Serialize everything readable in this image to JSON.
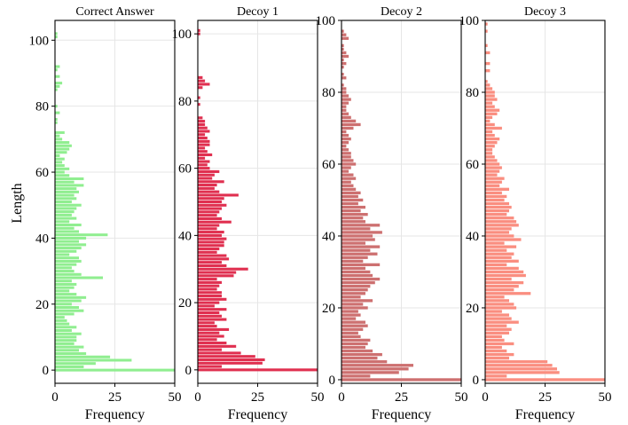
{
  "chart_data": [
    {
      "type": "bar",
      "orientation": "horizontal",
      "title": "Correct Answer",
      "xlabel": "Frequency",
      "ylabel": "Length",
      "xlim": [
        0,
        50
      ],
      "ylim": [
        -4,
        106
      ],
      "xticks": [
        "0",
        "25",
        "50"
      ],
      "yticks": [
        "0",
        "20",
        "40",
        "60",
        "80",
        "100"
      ],
      "ytick_values": [
        0,
        20,
        40,
        60,
        80,
        100
      ],
      "grid": true,
      "color": "#90ee90",
      "y": [
        0,
        1,
        2,
        3,
        4,
        5,
        6,
        7,
        8,
        9,
        10,
        11,
        12,
        13,
        14,
        15,
        16,
        17,
        18,
        19,
        20,
        21,
        22,
        23,
        24,
        25,
        26,
        27,
        28,
        29,
        30,
        31,
        32,
        33,
        34,
        35,
        36,
        37,
        38,
        39,
        40,
        41,
        42,
        43,
        44,
        45,
        46,
        47,
        48,
        49,
        50,
        51,
        52,
        53,
        54,
        55,
        56,
        57,
        58,
        59,
        60,
        61,
        62,
        63,
        64,
        65,
        66,
        67,
        68,
        69,
        70,
        71,
        72,
        73,
        74,
        75,
        76,
        77,
        78,
        79,
        80,
        81,
        82,
        83,
        84,
        85,
        86,
        87,
        88,
        89,
        90,
        91,
        92,
        93,
        94,
        95,
        96,
        97,
        98,
        99,
        100,
        101,
        102,
        103,
        104,
        105
      ],
      "values": [
        50,
        12,
        17,
        32,
        23,
        13,
        10,
        12,
        8,
        9,
        9,
        11,
        7,
        9,
        6,
        5,
        4,
        8,
        12,
        10,
        7,
        11,
        13,
        9,
        6,
        8,
        9,
        7,
        20,
        11,
        8,
        7,
        9,
        11,
        10,
        6,
        9,
        11,
        13,
        10,
        13,
        22,
        10,
        8,
        11,
        6,
        9,
        7,
        8,
        9,
        11,
        7,
        9,
        8,
        10,
        9,
        12,
        8,
        12,
        6,
        4,
        6,
        4,
        3,
        4,
        2,
        5,
        6,
        7,
        6,
        3,
        2,
        4,
        0,
        0,
        1,
        1,
        0,
        2,
        0,
        1,
        0,
        0,
        0,
        0,
        1,
        2,
        3,
        0,
        2,
        0,
        1,
        2,
        0,
        0,
        0,
        0,
        0,
        0,
        0,
        0,
        1,
        1,
        0,
        0,
        0
      ]
    },
    {
      "type": "bar",
      "orientation": "horizontal",
      "title": "Decoy 1",
      "xlabel": "Frequency",
      "xlim": [
        0,
        50
      ],
      "ylim": [
        -4,
        104
      ],
      "xticks": [
        "0",
        "25",
        "50"
      ],
      "yticks": [
        "0",
        "20",
        "40",
        "60",
        "80",
        "100"
      ],
      "ytick_values": [
        0,
        20,
        40,
        60,
        80,
        100
      ],
      "grid": true,
      "color": "#e03050",
      "y": [
        0,
        1,
        2,
        3,
        4,
        5,
        6,
        7,
        8,
        9,
        10,
        11,
        12,
        13,
        14,
        15,
        16,
        17,
        18,
        19,
        20,
        21,
        22,
        23,
        24,
        25,
        26,
        27,
        28,
        29,
        30,
        31,
        32,
        33,
        34,
        35,
        36,
        37,
        38,
        39,
        40,
        41,
        42,
        43,
        44,
        45,
        46,
        47,
        48,
        49,
        50,
        51,
        52,
        53,
        54,
        55,
        56,
        57,
        58,
        59,
        60,
        61,
        62,
        63,
        64,
        65,
        66,
        67,
        68,
        69,
        70,
        71,
        72,
        73,
        74,
        75,
        76,
        77,
        78,
        79,
        80,
        81,
        82,
        83,
        84,
        85,
        86,
        87,
        88,
        89,
        90,
        91,
        92,
        93,
        94,
        95,
        96,
        97,
        98,
        99,
        100,
        101,
        102,
        103,
        104
      ],
      "values": [
        50,
        10,
        27,
        28,
        24,
        18,
        10,
        16,
        12,
        8,
        11,
        9,
        13,
        8,
        7,
        12,
        10,
        9,
        12,
        7,
        9,
        12,
        10,
        10,
        8,
        9,
        10,
        8,
        15,
        16,
        21,
        12,
        10,
        13,
        12,
        8,
        9,
        11,
        11,
        12,
        10,
        11,
        8,
        9,
        14,
        10,
        8,
        9,
        10,
        12,
        10,
        11,
        17,
        9,
        7,
        8,
        11,
        6,
        7,
        9,
        5,
        4,
        5,
        3,
        6,
        4,
        3,
        5,
        5,
        4,
        3,
        5,
        4,
        3,
        3,
        2,
        0,
        0,
        0,
        1,
        0,
        1,
        0,
        0,
        2,
        5,
        3,
        2,
        0,
        0,
        0,
        0,
        0,
        0,
        0,
        0,
        0,
        0,
        0,
        0,
        1,
        1,
        0,
        0,
        0
      ]
    },
    {
      "type": "bar",
      "orientation": "horizontal",
      "title": "Decoy 2",
      "xlabel": "Frequency",
      "xlim": [
        0,
        50
      ],
      "ylim": [
        -1,
        100
      ],
      "xticks": [
        "0",
        "25",
        "50"
      ],
      "yticks": [
        "0",
        "20",
        "40",
        "60",
        "80",
        "100"
      ],
      "ytick_values": [
        0,
        20,
        40,
        60,
        80,
        100
      ],
      "grid": true,
      "color": "#cd7070",
      "y": [
        0,
        1,
        2,
        3,
        4,
        5,
        6,
        7,
        8,
        9,
        10,
        11,
        12,
        13,
        14,
        15,
        16,
        17,
        18,
        19,
        20,
        21,
        22,
        23,
        24,
        25,
        26,
        27,
        28,
        29,
        30,
        31,
        32,
        33,
        34,
        35,
        36,
        37,
        38,
        39,
        40,
        41,
        42,
        43,
        44,
        45,
        46,
        47,
        48,
        49,
        50,
        51,
        52,
        53,
        54,
        55,
        56,
        57,
        58,
        59,
        60,
        61,
        62,
        63,
        64,
        65,
        66,
        67,
        68,
        69,
        70,
        71,
        72,
        73,
        74,
        75,
        76,
        77,
        78,
        79,
        80,
        81,
        82,
        83,
        84,
        85,
        86,
        87,
        88,
        89,
        90,
        91,
        92,
        93,
        94,
        95,
        96,
        97,
        98,
        99
      ],
      "values": [
        50,
        12,
        24,
        28,
        30,
        19,
        15,
        17,
        13,
        10,
        11,
        12,
        8,
        7,
        9,
        11,
        10,
        6,
        8,
        7,
        11,
        9,
        13,
        8,
        10,
        11,
        12,
        14,
        16,
        13,
        12,
        10,
        16,
        9,
        11,
        15,
        12,
        16,
        10,
        14,
        13,
        17,
        12,
        16,
        10,
        9,
        11,
        8,
        10,
        7,
        9,
        7,
        8,
        6,
        5,
        4,
        6,
        5,
        3,
        4,
        6,
        5,
        4,
        4,
        3,
        2,
        3,
        4,
        3,
        2,
        5,
        8,
        6,
        4,
        3,
        2,
        2,
        3,
        4,
        3,
        2,
        2,
        1,
        0,
        2,
        1,
        0,
        1,
        2,
        1,
        3,
        2,
        1,
        1,
        0,
        3,
        2,
        1,
        0,
        0
      ]
    },
    {
      "type": "bar",
      "orientation": "horizontal",
      "title": "Decoy 3",
      "xlabel": "Frequency",
      "xlim": [
        0,
        50
      ],
      "ylim": [
        -1,
        100
      ],
      "xticks": [
        "0",
        "25",
        "50"
      ],
      "yticks": [
        "0",
        "20",
        "40",
        "60",
        "80",
        "100"
      ],
      "ytick_values": [
        0,
        20,
        40,
        60,
        80,
        100
      ],
      "grid": true,
      "color": "#fa8e80",
      "y": [
        0,
        1,
        2,
        3,
        4,
        5,
        6,
        7,
        8,
        9,
        10,
        11,
        12,
        13,
        14,
        15,
        16,
        17,
        18,
        19,
        20,
        21,
        22,
        23,
        24,
        25,
        26,
        27,
        28,
        29,
        30,
        31,
        32,
        33,
        34,
        35,
        36,
        37,
        38,
        39,
        40,
        41,
        42,
        43,
        44,
        45,
        46,
        47,
        48,
        49,
        50,
        51,
        52,
        53,
        54,
        55,
        56,
        57,
        58,
        59,
        60,
        61,
        62,
        63,
        64,
        65,
        66,
        67,
        68,
        69,
        70,
        71,
        72,
        73,
        74,
        75,
        76,
        77,
        78,
        79,
        80,
        81,
        82,
        83,
        84,
        85,
        86,
        87,
        88,
        89,
        90,
        91,
        92,
        93,
        94,
        95,
        96,
        97,
        98,
        99
      ],
      "values": [
        50,
        9,
        31,
        30,
        28,
        26,
        10,
        12,
        9,
        7,
        12,
        8,
        7,
        10,
        11,
        9,
        14,
        11,
        10,
        7,
        13,
        12,
        10,
        8,
        19,
        12,
        14,
        16,
        11,
        17,
        16,
        14,
        9,
        14,
        11,
        12,
        9,
        13,
        8,
        15,
        12,
        10,
        11,
        14,
        13,
        12,
        9,
        10,
        11,
        10,
        8,
        9,
        7,
        10,
        6,
        7,
        8,
        5,
        6,
        7,
        6,
        5,
        4,
        3,
        3,
        4,
        5,
        6,
        4,
        3,
        7,
        4,
        2,
        3,
        5,
        6,
        4,
        3,
        5,
        4,
        4,
        3,
        2,
        1,
        0,
        0,
        2,
        0,
        2,
        0,
        0,
        2,
        0,
        1,
        0,
        0,
        0,
        1,
        0,
        1
      ]
    }
  ]
}
